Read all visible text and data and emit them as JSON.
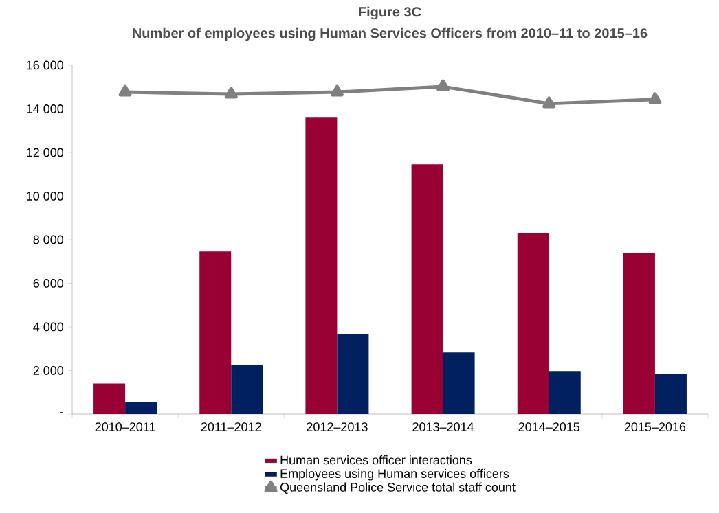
{
  "chart_data": {
    "type": "bar",
    "title": "Figure 3C",
    "subtitle": "Number of employees using Human Services Officers from 2010–11 to 2015–16",
    "categories": [
      "2010–2011",
      "2011–2012",
      "2012–2013",
      "2013–2014",
      "2014–2015",
      "2015–2016"
    ],
    "series": [
      {
        "name": "Human services officer interactions",
        "color": "#990033",
        "values": [
          1400,
          7460,
          13600,
          11460,
          8310,
          7400
        ]
      },
      {
        "name": "Employees using Human services officers",
        "color": "#002060",
        "values": [
          540,
          2270,
          3650,
          2830,
          1980,
          1860
        ]
      },
      {
        "name": "Queensland Police Service total staff count",
        "type": "line",
        "color": "#808080",
        "marker": "triangle",
        "values": [
          14770,
          14680,
          14770,
          15020,
          14240,
          14430
        ]
      }
    ],
    "ylim": [
      0,
      16000
    ],
    "yticks": [
      {
        "value": 0,
        "label": "-"
      },
      {
        "value": 2000,
        "label": "2 000"
      },
      {
        "value": 4000,
        "label": "4 000"
      },
      {
        "value": 6000,
        "label": "6 000"
      },
      {
        "value": 8000,
        "label": "8 000"
      },
      {
        "value": 10000,
        "label": "10 000"
      },
      {
        "value": 12000,
        "label": "12 000"
      },
      {
        "value": 14000,
        "label": "14 000"
      },
      {
        "value": 16000,
        "label": "16 000"
      }
    ],
    "legend": "bottom"
  }
}
